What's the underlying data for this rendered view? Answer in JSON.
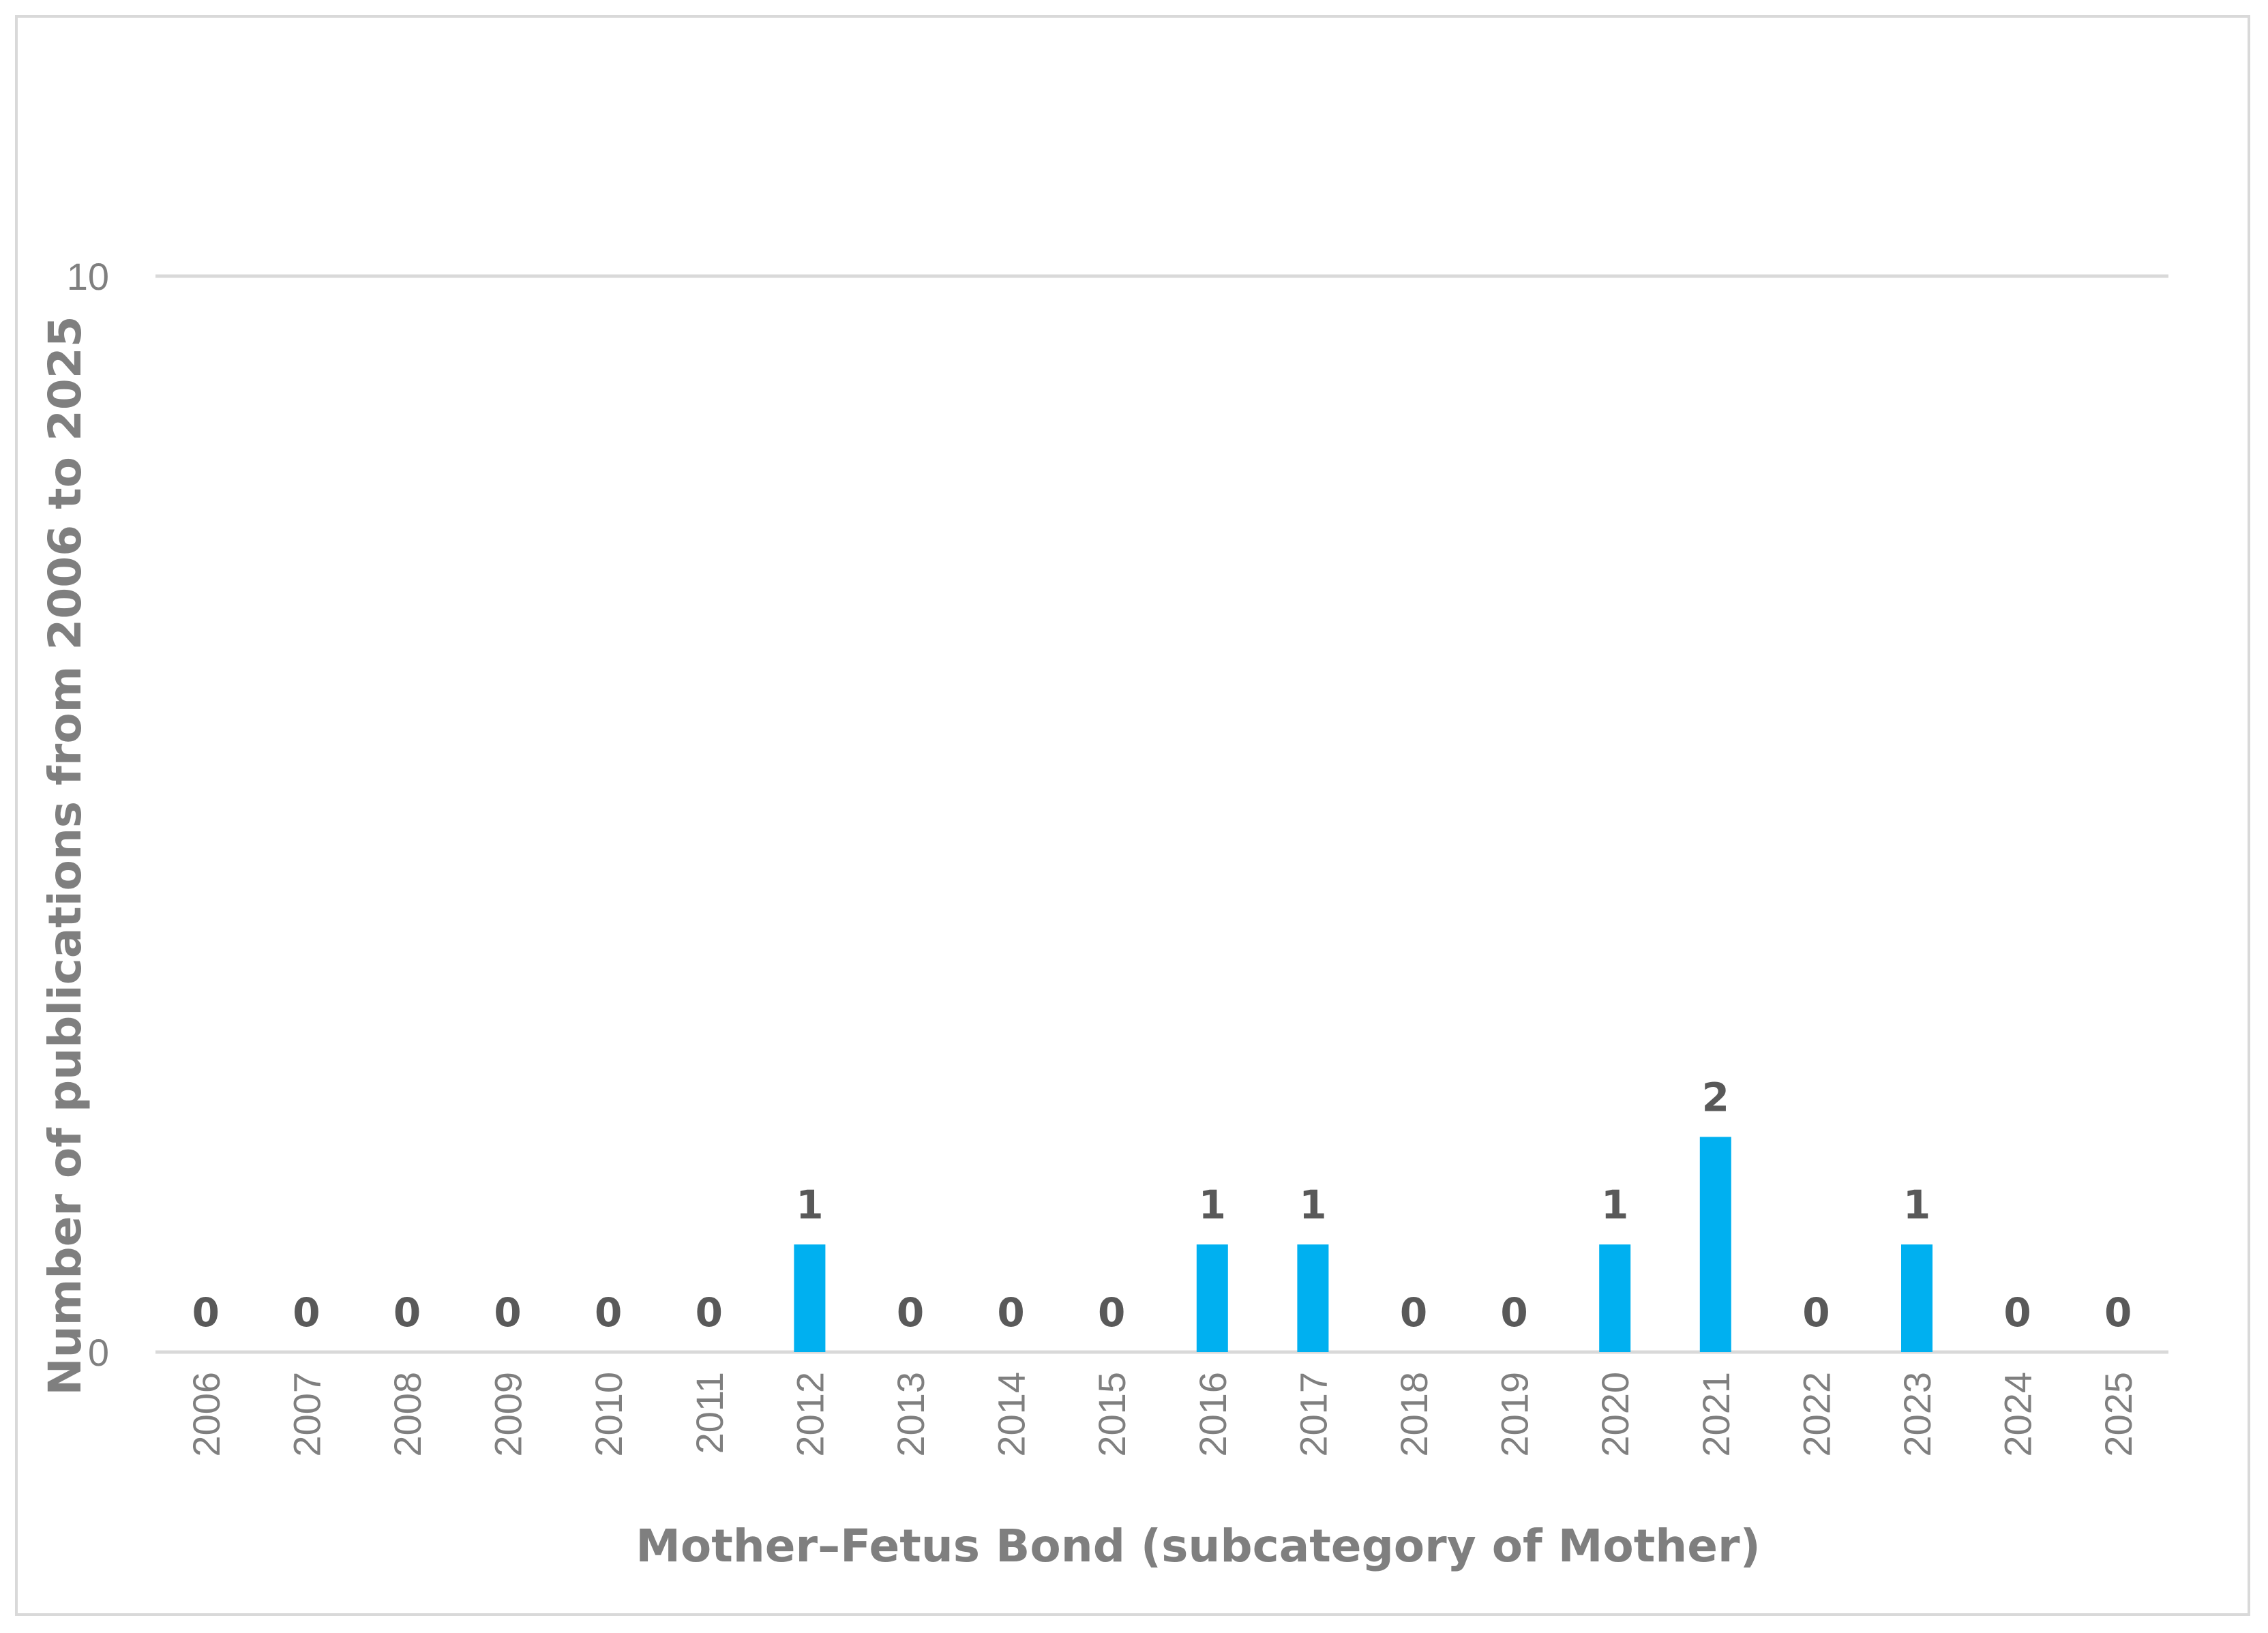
{
  "chart_data": {
    "type": "bar",
    "title": "",
    "xlabel": "Mother–Fetus Bond (subcategory of Mother)",
    "ylabel": "Number of publications from 2006 to 2025",
    "categories": [
      "2006",
      "2007",
      "2008",
      "2009",
      "2010",
      "2011",
      "2012",
      "2013",
      "2014",
      "2015",
      "2016",
      "2017",
      "2018",
      "2019",
      "2020",
      "2021",
      "2022",
      "2023",
      "2024",
      "2025"
    ],
    "series": [
      {
        "values": [
          0,
          0,
          0,
          0,
          0,
          0,
          1,
          0,
          0,
          0,
          1,
          1,
          0,
          0,
          1,
          2,
          0,
          1,
          0,
          0
        ],
        "color": "#00b0f0"
      }
    ],
    "ylim": [
      0,
      10
    ],
    "yticks": [
      0,
      10
    ],
    "grid": true,
    "data_labels": true,
    "legend": "none"
  }
}
